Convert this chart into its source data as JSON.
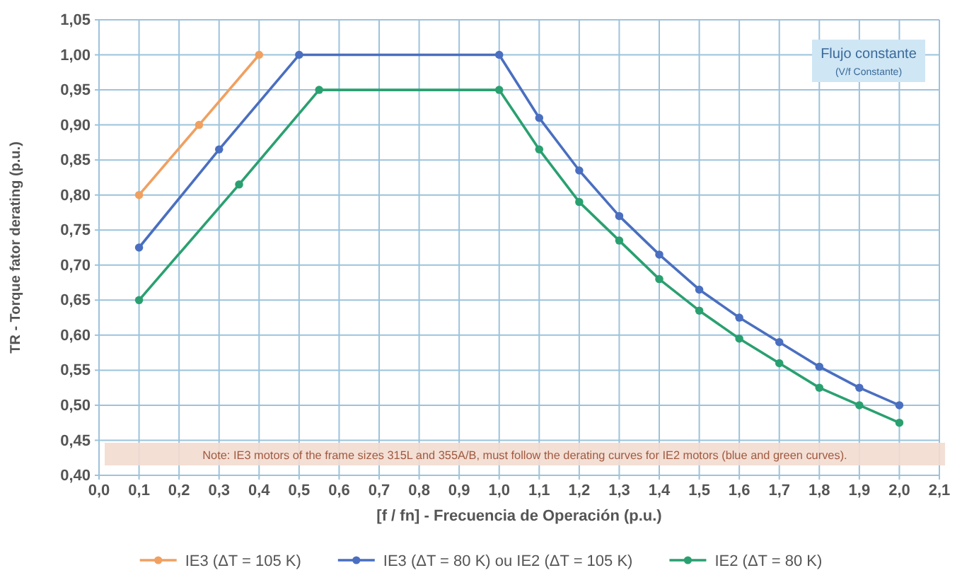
{
  "chart_data": {
    "type": "line",
    "ylabel": "TR - Torque fator derating (p.u.)",
    "xlabel": "[f / fn] - Frecuencia de Operación (p.u.)",
    "xlim": [
      0,
      2.1
    ],
    "ylim": [
      0.4,
      1.05
    ],
    "xticks": [
      {
        "value": 0,
        "label": "0,0"
      },
      {
        "value": 0.1,
        "label": "0,1"
      },
      {
        "value": 0.2,
        "label": "0,2"
      },
      {
        "value": 0.3,
        "label": "0,3"
      },
      {
        "value": 0.4,
        "label": "0,4"
      },
      {
        "value": 0.5,
        "label": "0,5"
      },
      {
        "value": 0.6,
        "label": "0,6"
      },
      {
        "value": 0.7,
        "label": "0,7"
      },
      {
        "value": 0.8,
        "label": "0,8"
      },
      {
        "value": 0.9,
        "label": "0,9"
      },
      {
        "value": 1,
        "label": "1,0"
      },
      {
        "value": 1.1,
        "label": "1,1"
      },
      {
        "value": 1.2,
        "label": "1,2"
      },
      {
        "value": 1.3,
        "label": "1,3"
      },
      {
        "value": 1.4,
        "label": "1,4"
      },
      {
        "value": 1.5,
        "label": "1,5"
      },
      {
        "value": 1.6,
        "label": "1,6"
      },
      {
        "value": 1.7,
        "label": "1,7"
      },
      {
        "value": 1.8,
        "label": "1,8"
      },
      {
        "value": 1.9,
        "label": "1,9"
      },
      {
        "value": 2,
        "label": "2,0"
      },
      {
        "value": 2.1,
        "label": "2,1"
      }
    ],
    "yticks": [
      {
        "value": 0.4,
        "label": "0,40"
      },
      {
        "value": 0.45,
        "label": "0,45"
      },
      {
        "value": 0.5,
        "label": "0,50"
      },
      {
        "value": 0.55,
        "label": "0,55"
      },
      {
        "value": 0.6,
        "label": "0,60"
      },
      {
        "value": 0.65,
        "label": "0,65"
      },
      {
        "value": 0.7,
        "label": "0,70"
      },
      {
        "value": 0.75,
        "label": "0,75"
      },
      {
        "value": 0.8,
        "label": "0,80"
      },
      {
        "value": 0.85,
        "label": "0,85"
      },
      {
        "value": 0.9,
        "label": "0,90"
      },
      {
        "value": 0.95,
        "label": "0,95"
      },
      {
        "value": 1,
        "label": "1,00"
      },
      {
        "value": 1.05,
        "label": "1,05"
      }
    ],
    "grid": true,
    "legend": "bottom",
    "marker": "circle",
    "line_style": "solid",
    "annotations": [
      "Flujo constante",
      "(V/f Constante)",
      "Note: IE3 motors of the frame sizes 315L and 355A/B, must follow the derating curves for IE2 motors (blue and green curves)."
    ],
    "series": [
      {
        "name": "IE3 (ΔT = 105 K)",
        "color": "#f0a060",
        "x": [
          0.1,
          0.25,
          0.4
        ],
        "values": [
          0.8,
          0.9,
          1.0
        ]
      },
      {
        "name": "IE3 (ΔT = 80 K) ou IE2 (ΔT = 105 K)",
        "color": "#4a6fc0",
        "x": [
          0.1,
          0.3,
          0.5,
          1.0,
          1.1,
          1.2,
          1.3,
          1.4,
          1.5,
          1.6,
          1.7,
          1.8,
          1.9,
          2.0
        ],
        "values": [
          0.725,
          0.865,
          1.0,
          1.0,
          0.91,
          0.835,
          0.77,
          0.715,
          0.665,
          0.625,
          0.59,
          0.555,
          0.525,
          0.5
        ]
      },
      {
        "name": "IE2 (ΔT = 80 K)",
        "color": "#2aa070",
        "x": [
          0.1,
          0.35,
          0.55,
          1.0,
          1.1,
          1.2,
          1.3,
          1.4,
          1.5,
          1.6,
          1.7,
          1.8,
          1.9,
          2.0
        ],
        "values": [
          0.65,
          0.815,
          0.95,
          0.95,
          0.865,
          0.79,
          0.735,
          0.68,
          0.635,
          0.595,
          0.56,
          0.525,
          0.5,
          0.475
        ]
      }
    ]
  }
}
